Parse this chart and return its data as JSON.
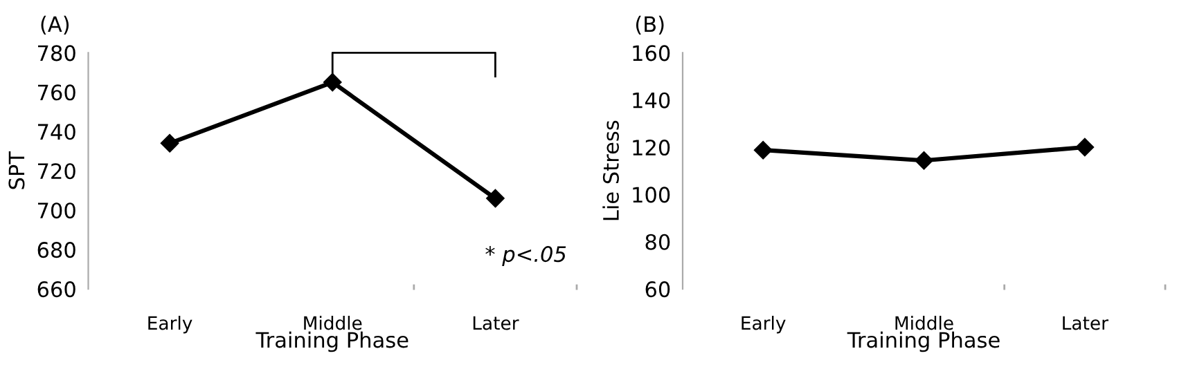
{
  "chart_data": [
    {
      "type": "line",
      "title": "(A)",
      "xlabel": "Training Phase",
      "ylabel": "SPT",
      "categories": [
        "Early",
        "Middle",
        "Later"
      ],
      "series": [
        {
          "color": "#000000",
          "values": [
            734,
            765,
            706
          ]
        }
      ],
      "ylim": [
        660,
        780
      ],
      "yticks": [
        660,
        680,
        700,
        720,
        740,
        760,
        780
      ],
      "marker": "diamond",
      "line_style": "solid",
      "grid": false,
      "legend": false,
      "annotations": [
        "* p<.05"
      ]
    },
    {
      "type": "line",
      "title": "(B)",
      "xlabel": "Training Phase",
      "ylabel": "Lie Stress",
      "categories": [
        "Early",
        "Middle",
        "Later"
      ],
      "series": [
        {
          "color": "#000000",
          "values": [
            118.8,
            114.4,
            120
          ]
        }
      ],
      "ylim": [
        60,
        160
      ],
      "yticks": [
        60,
        80,
        100,
        120,
        140,
        160
      ],
      "marker": "diamond",
      "line_style": "solid",
      "grid": false,
      "legend": false
    }
  ]
}
